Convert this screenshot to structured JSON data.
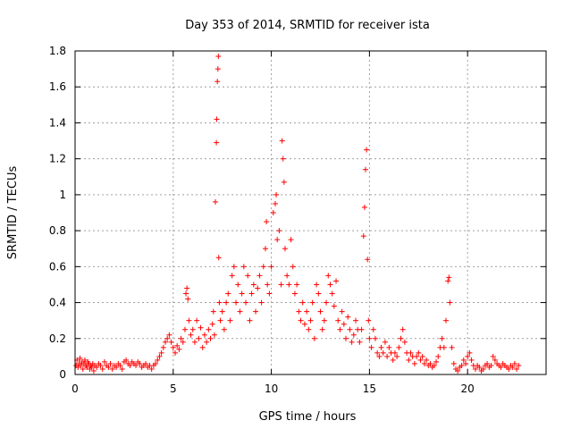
{
  "chart_data": {
    "type": "scatter",
    "title": "Day 353 of 2014, SRMTID for receiver ista",
    "xlabel": "GPS time / hours",
    "ylabel": "SRMTID / TECUs",
    "xlim": [
      0,
      24
    ],
    "ylim": [
      0,
      1.8
    ],
    "xticks": [
      0,
      5,
      10,
      15,
      20
    ],
    "yticks": [
      0,
      0.2,
      0.4,
      0.6,
      0.8,
      1,
      1.2,
      1.4,
      1.6,
      1.8
    ],
    "xtick_labels": [
      "0",
      "5",
      "10",
      "15",
      "20"
    ],
    "ytick_labels": [
      "0",
      "0.2",
      "0.4",
      "0.6",
      "0.8",
      "1",
      "1.2",
      "1.4",
      "1.6",
      "1.8"
    ],
    "grid": true,
    "marker": "+",
    "color": "#ff0000",
    "series": [
      {
        "name": "SRMTID",
        "points": [
          [
            0.05,
            0.05
          ],
          [
            0.1,
            0.08
          ],
          [
            0.15,
            0.04
          ],
          [
            0.2,
            0.06
          ],
          [
            0.25,
            0.09
          ],
          [
            0.3,
            0.05
          ],
          [
            0.35,
            0.07
          ],
          [
            0.4,
            0.03
          ],
          [
            0.45,
            0.06
          ],
          [
            0.5,
            0.08
          ],
          [
            0.55,
            0.05
          ],
          [
            0.6,
            0.04
          ],
          [
            0.65,
            0.07
          ],
          [
            0.7,
            0.06
          ],
          [
            0.75,
            0.03
          ],
          [
            0.8,
            0.05
          ],
          [
            0.85,
            0.04
          ],
          [
            0.9,
            0.06
          ],
          [
            0.95,
            0.02
          ],
          [
            1.0,
            0.05
          ],
          [
            1.1,
            0.04
          ],
          [
            1.2,
            0.06
          ],
          [
            1.3,
            0.05
          ],
          [
            1.4,
            0.03
          ],
          [
            1.5,
            0.07
          ],
          [
            1.6,
            0.05
          ],
          [
            1.7,
            0.04
          ],
          [
            1.8,
            0.06
          ],
          [
            1.9,
            0.03
          ],
          [
            2.0,
            0.05
          ],
          [
            2.1,
            0.04
          ],
          [
            2.2,
            0.06
          ],
          [
            2.3,
            0.05
          ],
          [
            2.4,
            0.03
          ],
          [
            2.5,
            0.07
          ],
          [
            2.6,
            0.08
          ],
          [
            2.7,
            0.06
          ],
          [
            2.8,
            0.05
          ],
          [
            2.9,
            0.07
          ],
          [
            3.0,
            0.06
          ],
          [
            3.1,
            0.05
          ],
          [
            3.2,
            0.07
          ],
          [
            3.3,
            0.06
          ],
          [
            3.4,
            0.04
          ],
          [
            3.5,
            0.05
          ],
          [
            3.6,
            0.06
          ],
          [
            3.7,
            0.04
          ],
          [
            3.8,
            0.05
          ],
          [
            3.9,
            0.03
          ],
          [
            4.0,
            0.05
          ],
          [
            4.1,
            0.06
          ],
          [
            4.2,
            0.08
          ],
          [
            4.3,
            0.1
          ],
          [
            4.4,
            0.12
          ],
          [
            4.5,
            0.15
          ],
          [
            4.6,
            0.18
          ],
          [
            4.7,
            0.2
          ],
          [
            4.8,
            0.22
          ],
          [
            4.9,
            0.18
          ],
          [
            5.0,
            0.15
          ],
          [
            5.1,
            0.12
          ],
          [
            5.2,
            0.16
          ],
          [
            5.3,
            0.14
          ],
          [
            5.4,
            0.2
          ],
          [
            5.5,
            0.18
          ],
          [
            5.6,
            0.25
          ],
          [
            5.65,
            0.45
          ],
          [
            5.7,
            0.48
          ],
          [
            5.75,
            0.42
          ],
          [
            5.8,
            0.3
          ],
          [
            5.9,
            0.22
          ],
          [
            6.0,
            0.25
          ],
          [
            6.1,
            0.18
          ],
          [
            6.2,
            0.3
          ],
          [
            6.3,
            0.2
          ],
          [
            6.4,
            0.26
          ],
          [
            6.5,
            0.15
          ],
          [
            6.6,
            0.22
          ],
          [
            6.7,
            0.18
          ],
          [
            6.8,
            0.25
          ],
          [
            6.9,
            0.2
          ],
          [
            7.0,
            0.28
          ],
          [
            7.05,
            0.35
          ],
          [
            7.1,
            0.22
          ],
          [
            7.15,
            0.96
          ],
          [
            7.2,
            1.29
          ],
          [
            7.22,
            1.42
          ],
          [
            7.25,
            1.63
          ],
          [
            7.28,
            1.7
          ],
          [
            7.3,
            1.77
          ],
          [
            7.32,
            0.65
          ],
          [
            7.35,
            0.4
          ],
          [
            7.4,
            0.3
          ],
          [
            7.5,
            0.35
          ],
          [
            7.6,
            0.25
          ],
          [
            7.7,
            0.4
          ],
          [
            7.8,
            0.45
          ],
          [
            7.9,
            0.3
          ],
          [
            8.0,
            0.55
          ],
          [
            8.1,
            0.6
          ],
          [
            8.2,
            0.4
          ],
          [
            8.3,
            0.5
          ],
          [
            8.4,
            0.35
          ],
          [
            8.5,
            0.45
          ],
          [
            8.6,
            0.6
          ],
          [
            8.7,
            0.4
          ],
          [
            8.8,
            0.55
          ],
          [
            8.9,
            0.3
          ],
          [
            9.0,
            0.45
          ],
          [
            9.1,
            0.5
          ],
          [
            9.2,
            0.35
          ],
          [
            9.3,
            0.48
          ],
          [
            9.4,
            0.55
          ],
          [
            9.5,
            0.4
          ],
          [
            9.6,
            0.6
          ],
          [
            9.7,
            0.7
          ],
          [
            9.75,
            0.85
          ],
          [
            9.8,
            0.5
          ],
          [
            9.9,
            0.45
          ],
          [
            10.0,
            0.6
          ],
          [
            10.1,
            0.9
          ],
          [
            10.2,
            0.95
          ],
          [
            10.25,
            1.0
          ],
          [
            10.3,
            0.75
          ],
          [
            10.4,
            0.8
          ],
          [
            10.5,
            0.5
          ],
          [
            10.55,
            1.3
          ],
          [
            10.6,
            1.2
          ],
          [
            10.65,
            1.07
          ],
          [
            10.7,
            0.7
          ],
          [
            10.8,
            0.55
          ],
          [
            10.9,
            0.5
          ],
          [
            11.0,
            0.75
          ],
          [
            11.1,
            0.6
          ],
          [
            11.2,
            0.45
          ],
          [
            11.3,
            0.5
          ],
          [
            11.4,
            0.35
          ],
          [
            11.5,
            0.3
          ],
          [
            11.6,
            0.4
          ],
          [
            11.7,
            0.28
          ],
          [
            11.8,
            0.35
          ],
          [
            11.9,
            0.25
          ],
          [
            12.0,
            0.3
          ],
          [
            12.1,
            0.4
          ],
          [
            12.2,
            0.2
          ],
          [
            12.3,
            0.5
          ],
          [
            12.4,
            0.45
          ],
          [
            12.5,
            0.35
          ],
          [
            12.6,
            0.25
          ],
          [
            12.7,
            0.3
          ],
          [
            12.8,
            0.4
          ],
          [
            12.9,
            0.55
          ],
          [
            13.0,
            0.5
          ],
          [
            13.1,
            0.45
          ],
          [
            13.2,
            0.38
          ],
          [
            13.3,
            0.52
          ],
          [
            13.4,
            0.3
          ],
          [
            13.5,
            0.25
          ],
          [
            13.6,
            0.35
          ],
          [
            13.7,
            0.28
          ],
          [
            13.8,
            0.2
          ],
          [
            13.9,
            0.32
          ],
          [
            14.0,
            0.25
          ],
          [
            14.1,
            0.18
          ],
          [
            14.2,
            0.22
          ],
          [
            14.3,
            0.3
          ],
          [
            14.4,
            0.25
          ],
          [
            14.5,
            0.18
          ],
          [
            14.6,
            0.25
          ],
          [
            14.7,
            0.77
          ],
          [
            14.75,
            0.93
          ],
          [
            14.8,
            1.14
          ],
          [
            14.85,
            1.25
          ],
          [
            14.9,
            0.64
          ],
          [
            14.95,
            0.3
          ],
          [
            15.0,
            0.2
          ],
          [
            15.1,
            0.15
          ],
          [
            15.2,
            0.25
          ],
          [
            15.3,
            0.2
          ],
          [
            15.4,
            0.12
          ],
          [
            15.5,
            0.1
          ],
          [
            15.6,
            0.15
          ],
          [
            15.7,
            0.12
          ],
          [
            15.8,
            0.18
          ],
          [
            15.9,
            0.1
          ],
          [
            16.0,
            0.15
          ],
          [
            16.1,
            0.12
          ],
          [
            16.2,
            0.08
          ],
          [
            16.3,
            0.12
          ],
          [
            16.4,
            0.1
          ],
          [
            16.5,
            0.15
          ],
          [
            16.6,
            0.2
          ],
          [
            16.7,
            0.25
          ],
          [
            16.8,
            0.18
          ],
          [
            16.9,
            0.12
          ],
          [
            17.0,
            0.08
          ],
          [
            17.1,
            0.12
          ],
          [
            17.2,
            0.1
          ],
          [
            17.3,
            0.06
          ],
          [
            17.4,
            0.1
          ],
          [
            17.5,
            0.12
          ],
          [
            17.6,
            0.08
          ],
          [
            17.7,
            0.1
          ],
          [
            17.8,
            0.06
          ],
          [
            17.9,
            0.08
          ],
          [
            18.0,
            0.05
          ],
          [
            18.1,
            0.06
          ],
          [
            18.2,
            0.04
          ],
          [
            18.3,
            0.05
          ],
          [
            18.4,
            0.07
          ],
          [
            18.5,
            0.1
          ],
          [
            18.6,
            0.15
          ],
          [
            18.7,
            0.2
          ],
          [
            18.8,
            0.15
          ],
          [
            18.9,
            0.3
          ],
          [
            19.0,
            0.52
          ],
          [
            19.05,
            0.54
          ],
          [
            19.1,
            0.4
          ],
          [
            19.2,
            0.15
          ],
          [
            19.3,
            0.06
          ],
          [
            19.4,
            0.03
          ],
          [
            19.5,
            0.02
          ],
          [
            19.6,
            0.04
          ],
          [
            19.7,
            0.05
          ],
          [
            19.8,
            0.08
          ],
          [
            19.9,
            0.06
          ],
          [
            20.0,
            0.1
          ],
          [
            20.1,
            0.12
          ],
          [
            20.2,
            0.08
          ],
          [
            20.3,
            0.05
          ],
          [
            20.4,
            0.03
          ],
          [
            20.5,
            0.05
          ],
          [
            20.6,
            0.04
          ],
          [
            20.7,
            0.02
          ],
          [
            20.8,
            0.03
          ],
          [
            20.9,
            0.05
          ],
          [
            21.0,
            0.06
          ],
          [
            21.1,
            0.04
          ],
          [
            21.2,
            0.05
          ],
          [
            21.3,
            0.1
          ],
          [
            21.4,
            0.08
          ],
          [
            21.5,
            0.06
          ],
          [
            21.6,
            0.05
          ],
          [
            21.7,
            0.04
          ],
          [
            21.8,
            0.06
          ],
          [
            21.9,
            0.05
          ],
          [
            22.0,
            0.04
          ],
          [
            22.1,
            0.03
          ],
          [
            22.2,
            0.05
          ],
          [
            22.3,
            0.04
          ],
          [
            22.4,
            0.06
          ],
          [
            22.5,
            0.03
          ],
          [
            22.6,
            0.05
          ]
        ]
      }
    ]
  }
}
